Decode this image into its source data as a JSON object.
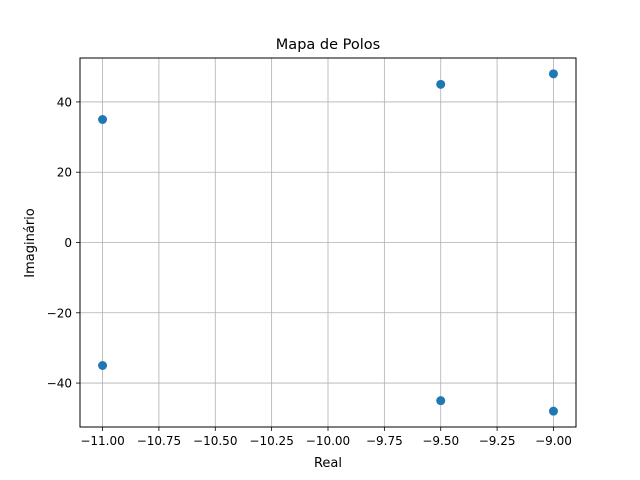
{
  "chart_data": {
    "type": "scatter",
    "title": "Mapa de Polos",
    "xlabel": "Real",
    "ylabel": "Imaginário",
    "xlim": [
      -11.1,
      -8.9
    ],
    "ylim": [
      -52.5,
      52.5
    ],
    "xticks": [
      -11.0,
      -10.75,
      -10.5,
      -10.25,
      -10.0,
      -9.75,
      -9.5,
      -9.25,
      -9.0
    ],
    "xtick_labels": [
      "−11.00",
      "−10.75",
      "−10.50",
      "−10.25",
      "−10.00",
      "−9.75",
      "−9.50",
      "−9.25",
      "−9.00"
    ],
    "yticks": [
      40,
      20,
      0,
      -20,
      -40
    ],
    "ytick_labels": [
      "40",
      "20",
      "0",
      "−20",
      "−40"
    ],
    "grid": true,
    "legend": null,
    "series": [
      {
        "color": "#1f77b4",
        "points": [
          {
            "x": -11.0,
            "y": 35
          },
          {
            "x": -11.0,
            "y": -35
          },
          {
            "x": -9.5,
            "y": 45
          },
          {
            "x": -9.5,
            "y": -45
          },
          {
            "x": -9.0,
            "y": 48
          },
          {
            "x": -9.0,
            "y": -48
          }
        ]
      }
    ]
  }
}
